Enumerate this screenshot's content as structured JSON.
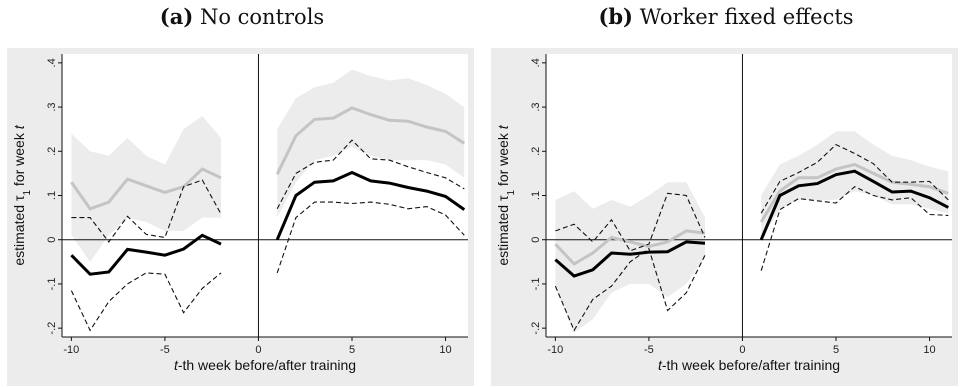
{
  "panels": [
    {
      "tag": "(a)",
      "title": "No controls"
    },
    {
      "tag": "(b)",
      "title": "Worker fixed effects"
    }
  ],
  "chart_data": [
    {
      "type": "line",
      "title": "(a) No controls",
      "xlabel": "t-th week before/after training",
      "ylabel": "estimated τ1 for week t",
      "xlim": [
        -10.5,
        11.2
      ],
      "ylim": [
        -0.22,
        0.42
      ],
      "xticks": [
        -10,
        -5,
        0,
        5,
        10
      ],
      "yticks": [
        -0.2,
        -0.1,
        0,
        0.1,
        0.2,
        0.3,
        0.4
      ],
      "ytick_labels": [
        "-.2",
        "-.1",
        "0",
        ".1",
        ".2",
        ".3",
        ".4"
      ],
      "reference_lines": {
        "x": 0,
        "y": 0
      },
      "segments": [
        {
          "x": [
            -10,
            -9,
            -8,
            -7,
            -6,
            -5,
            -4,
            -3,
            -2
          ],
          "estimate": [
            -0.035,
            -0.078,
            -0.073,
            -0.022,
            -0.028,
            -0.035,
            -0.021,
            0.01,
            -0.01
          ],
          "ci_lower": [
            -0.115,
            -0.205,
            -0.14,
            -0.1,
            -0.075,
            -0.078,
            -0.165,
            -0.11,
            -0.075
          ],
          "ci_upper": [
            0.05,
            0.05,
            -0.005,
            0.053,
            0.012,
            0.005,
            0.12,
            0.135,
            0.058
          ],
          "gray_line": [
            0.13,
            0.07,
            0.085,
            0.137,
            0.122,
            0.107,
            0.12,
            0.16,
            0.14
          ],
          "band_lower": [
            0.01,
            -0.05,
            0.01,
            0.05,
            0.04,
            0.02,
            0.02,
            0.05,
            0.05
          ],
          "band_upper": [
            0.24,
            0.2,
            0.19,
            0.23,
            0.19,
            0.17,
            0.25,
            0.28,
            0.23
          ]
        },
        {
          "x": [
            1,
            2,
            3,
            4,
            5,
            6,
            7,
            8,
            9,
            10,
            11
          ],
          "estimate": [
            0.0,
            0.1,
            0.13,
            0.133,
            0.152,
            0.133,
            0.128,
            0.118,
            0.11,
            0.098,
            0.068
          ],
          "ci_lower": [
            -0.075,
            0.05,
            0.085,
            0.085,
            0.082,
            0.085,
            0.08,
            0.07,
            0.075,
            0.056,
            0.01
          ],
          "ci_upper": [
            0.07,
            0.15,
            0.175,
            0.18,
            0.225,
            0.183,
            0.18,
            0.165,
            0.152,
            0.14,
            0.115
          ],
          "gray_line": [
            0.148,
            0.235,
            0.272,
            0.275,
            0.298,
            0.283,
            0.27,
            0.268,
            0.255,
            0.245,
            0.218
          ],
          "band_lower": [
            0.05,
            0.13,
            0.18,
            0.19,
            0.21,
            0.19,
            0.18,
            0.18,
            0.18,
            0.17,
            0.14
          ],
          "band_upper": [
            0.25,
            0.32,
            0.345,
            0.355,
            0.385,
            0.37,
            0.36,
            0.365,
            0.35,
            0.33,
            0.3
          ]
        }
      ]
    },
    {
      "type": "line",
      "title": "(b) Worker fixed effects",
      "xlabel": "t-th week before/after training",
      "ylabel": "estimated τ1 for week t",
      "xlim": [
        -10.5,
        11.2
      ],
      "ylim": [
        -0.22,
        0.42
      ],
      "xticks": [
        -10,
        -5,
        0,
        5,
        10
      ],
      "yticks": [
        -0.2,
        -0.1,
        0,
        0.1,
        0.2,
        0.3,
        0.4
      ],
      "ytick_labels": [
        "-.2",
        "-.1",
        "0",
        ".1",
        ".2",
        ".3",
        ".4"
      ],
      "reference_lines": {
        "x": 0,
        "y": 0
      },
      "segments": [
        {
          "x": [
            -10,
            -9,
            -8,
            -7,
            -6,
            -5,
            -4,
            -3,
            -2
          ],
          "estimate": [
            -0.045,
            -0.082,
            -0.068,
            -0.03,
            -0.033,
            -0.028,
            -0.027,
            -0.005,
            -0.008
          ],
          "ci_lower": [
            -0.105,
            -0.205,
            -0.135,
            -0.105,
            -0.05,
            -0.02,
            -0.16,
            -0.12,
            -0.035
          ],
          "ci_upper": [
            0.02,
            0.035,
            -0.005,
            0.045,
            -0.025,
            -0.01,
            0.105,
            0.1,
            0.005
          ],
          "gray_line": [
            -0.01,
            -0.055,
            -0.03,
            0.005,
            -0.005,
            -0.015,
            -0.005,
            0.02,
            0.015
          ],
          "band_lower": [
            -0.11,
            -0.21,
            -0.18,
            -0.12,
            -0.1,
            -0.1,
            -0.13,
            -0.1,
            -0.04
          ],
          "band_upper": [
            0.09,
            0.11,
            0.07,
            0.09,
            0.075,
            0.1,
            0.13,
            0.13,
            0.05
          ]
        },
        {
          "x": [
            1,
            2,
            3,
            4,
            5,
            6,
            7,
            8,
            9,
            10,
            11
          ],
          "estimate": [
            0.0,
            0.1,
            0.122,
            0.127,
            0.147,
            0.155,
            0.132,
            0.108,
            0.11,
            0.095,
            0.073
          ],
          "ci_lower": [
            -0.07,
            0.068,
            0.093,
            0.088,
            0.083,
            0.12,
            0.1,
            0.09,
            0.095,
            0.057,
            0.055
          ],
          "ci_upper": [
            0.06,
            0.132,
            0.152,
            0.175,
            0.215,
            0.195,
            0.172,
            0.13,
            0.13,
            0.132,
            0.09
          ],
          "gray_line": [
            0.04,
            0.11,
            0.14,
            0.14,
            0.16,
            0.17,
            0.15,
            0.13,
            0.125,
            0.12,
            0.105
          ],
          "band_lower": [
            0.0,
            0.07,
            0.09,
            0.09,
            0.09,
            0.11,
            0.1,
            0.08,
            0.08,
            0.07,
            0.06
          ],
          "band_upper": [
            0.1,
            0.17,
            0.19,
            0.215,
            0.245,
            0.245,
            0.215,
            0.19,
            0.18,
            0.165,
            0.155
          ]
        }
      ]
    }
  ]
}
